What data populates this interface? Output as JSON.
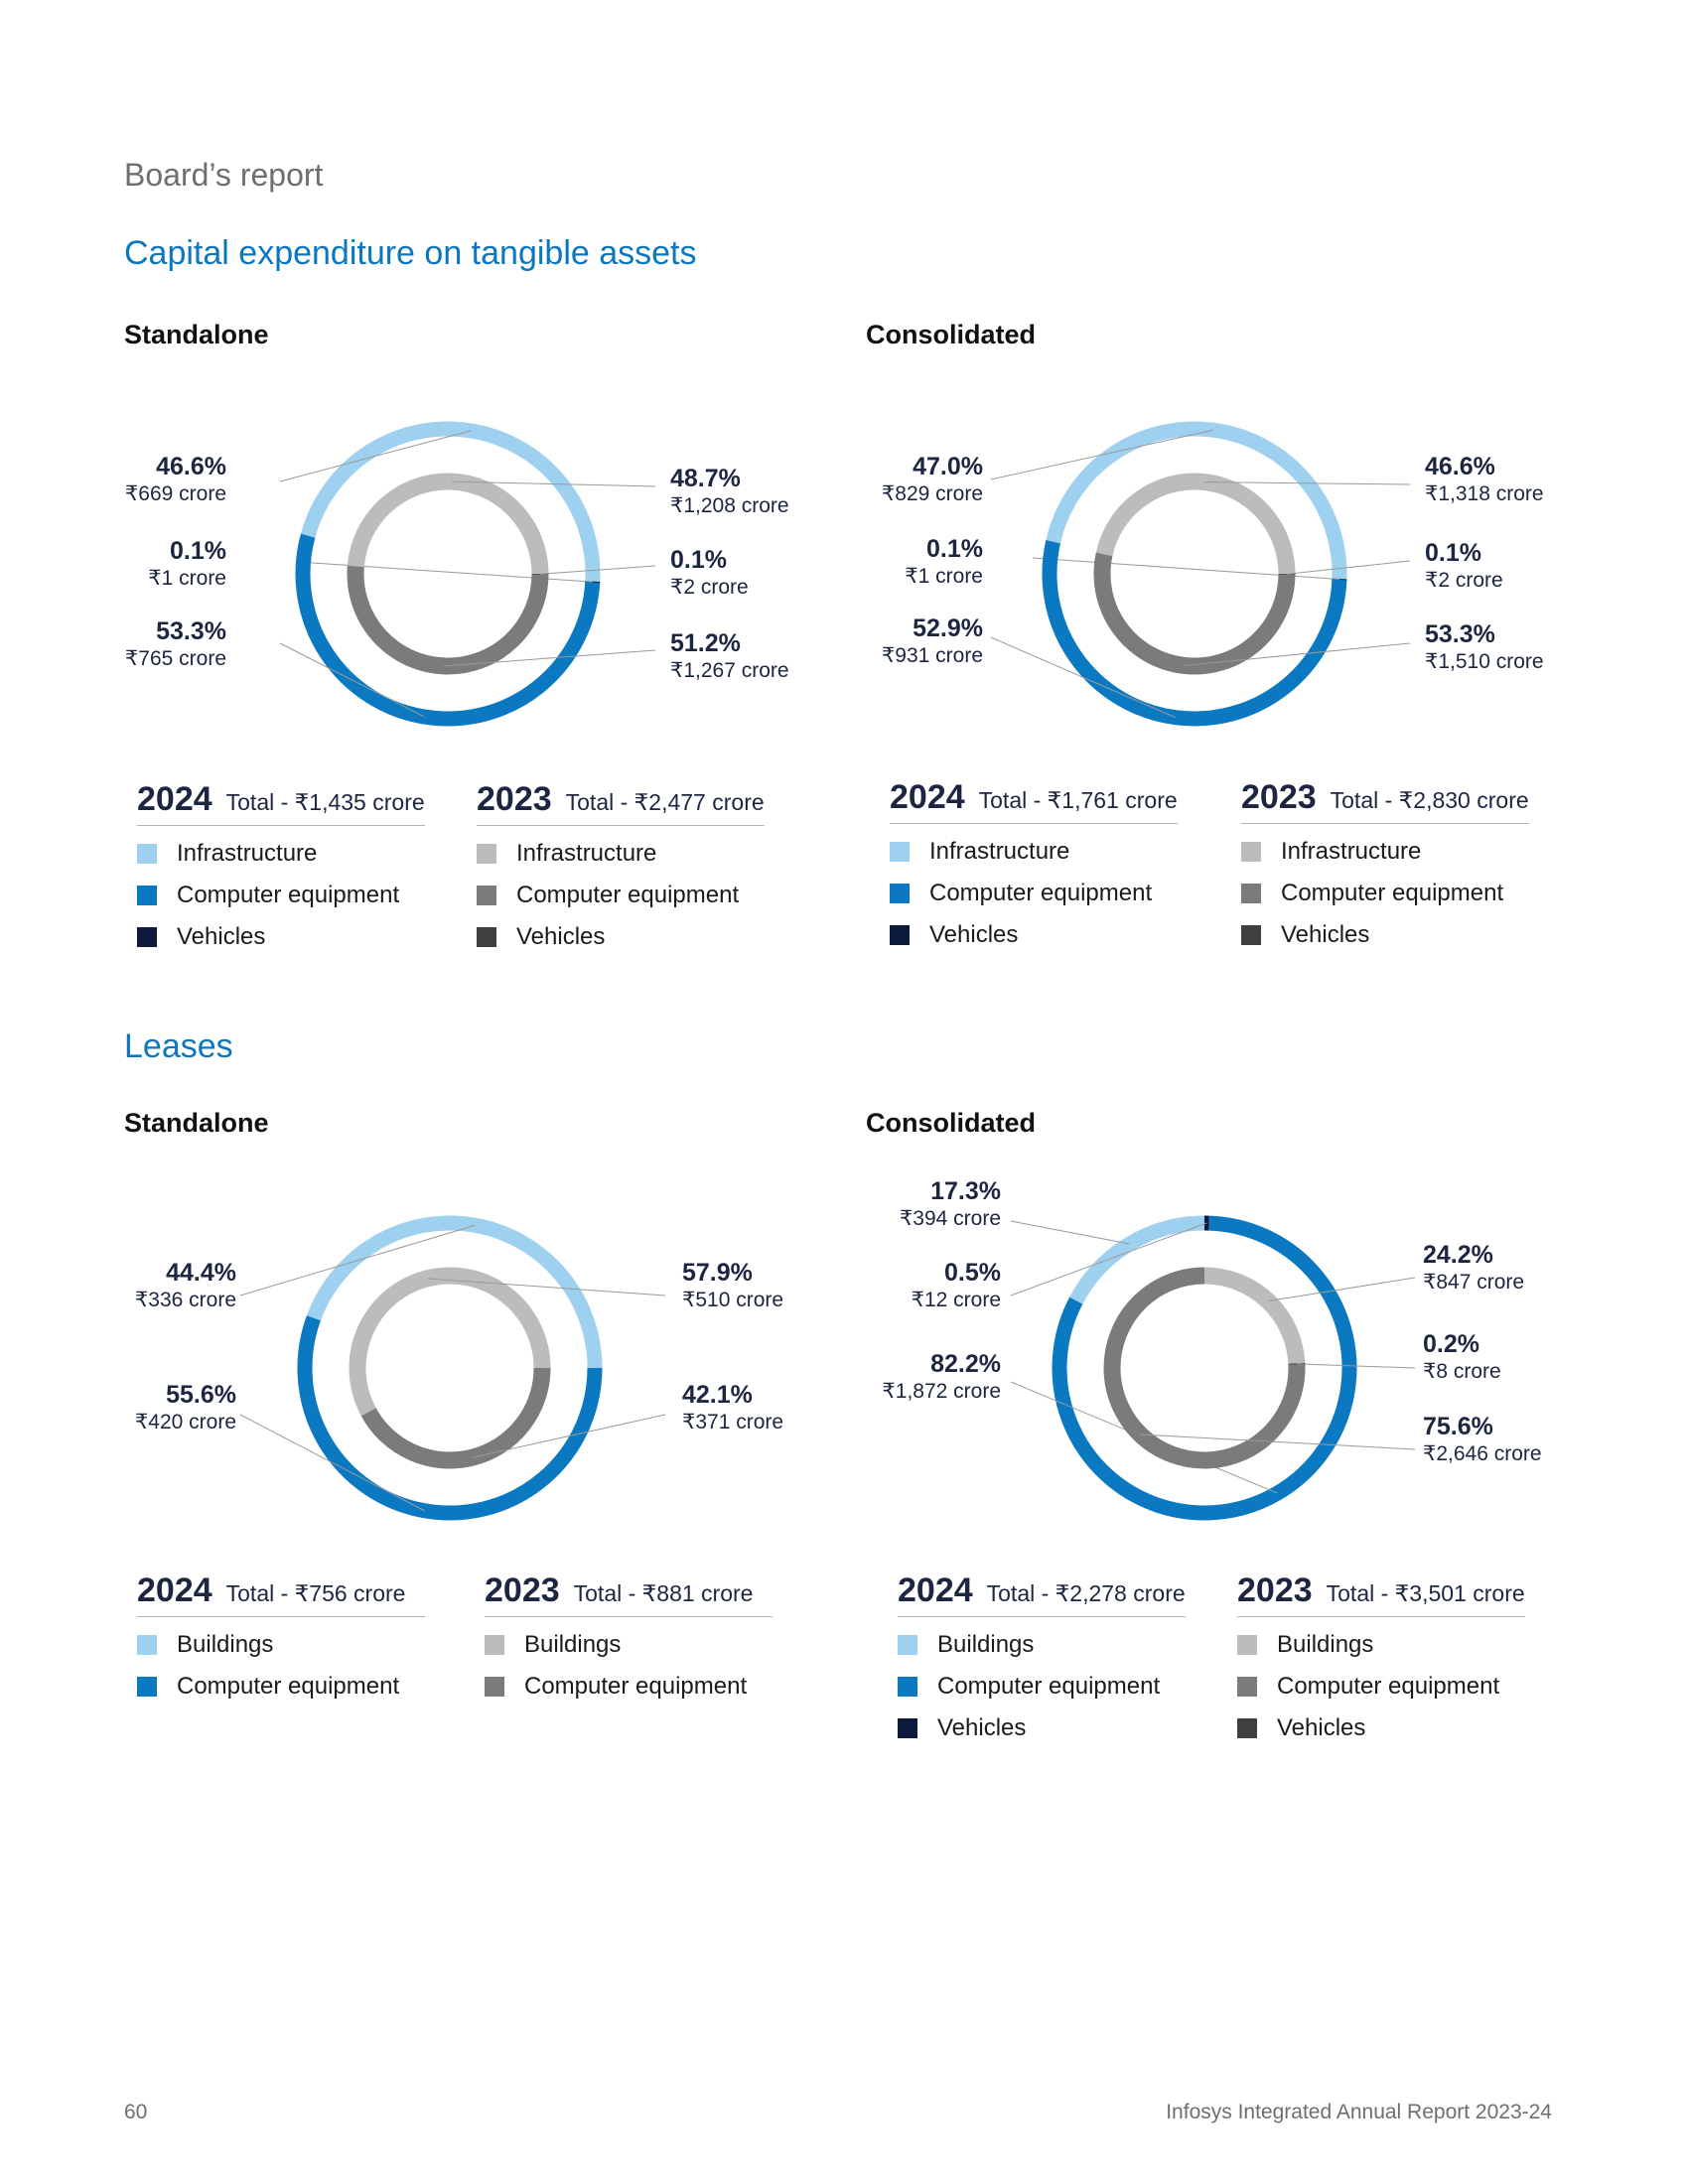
{
  "page": {
    "breadcrumb": "Board’s report",
    "page_number": "60",
    "report_title": "Infosys Integrated Annual Report 2023-24"
  },
  "sections": {
    "capex": {
      "title": "Capital expenditure on tangible assets",
      "standalone": "Standalone",
      "consolidated": "Consolidated"
    },
    "leases": {
      "title": "Leases",
      "standalone": "Standalone",
      "consolidated": "Consolidated"
    }
  },
  "colors": {
    "light_blue": "#9ed0f0",
    "blue": "#0a79c1",
    "navy": "#0e1a3d",
    "light_gray": "#bcbcbc",
    "gray": "#7b7b7b",
    "dark_gray": "#3f3f3f"
  },
  "chart_data": [
    {
      "id": "capex_standalone",
      "type": "pie",
      "outer": {
        "year": "2024",
        "total": "Total - ₹1,435 crore",
        "slices": [
          {
            "name": "Infrastructure",
            "value": 46.6,
            "pct": "46.6%",
            "amount": "₹669 crore",
            "color": "#9ed0f0"
          },
          {
            "name": "Vehicles",
            "value": 0.1,
            "pct": "0.1%",
            "amount": "₹1 crore",
            "color": "#0e1a3d"
          },
          {
            "name": "Computer equipment",
            "value": 53.3,
            "pct": "53.3%",
            "amount": "₹765 crore",
            "color": "#0a79c1"
          }
        ]
      },
      "inner": {
        "year": "2023",
        "total": "Total - ₹2,477 crore",
        "slices": [
          {
            "name": "Infrastructure",
            "value": 48.7,
            "pct": "48.7%",
            "amount": "₹1,208 crore",
            "color": "#bcbcbc"
          },
          {
            "name": "Vehicles",
            "value": 0.1,
            "pct": "0.1%",
            "amount": "₹2 crore",
            "color": "#3f3f3f"
          },
          {
            "name": "Computer equipment",
            "value": 51.2,
            "pct": "51.2%",
            "amount": "₹1,267 crore",
            "color": "#7b7b7b"
          }
        ]
      },
      "legend_2024": [
        "Infrastructure",
        "Computer equipment",
        "Vehicles"
      ],
      "legend_2023": [
        "Infrastructure",
        "Computer equipment",
        "Vehicles"
      ]
    },
    {
      "id": "capex_consolidated",
      "type": "pie",
      "outer": {
        "year": "2024",
        "total": "Total - ₹1,761 crore",
        "slices": [
          {
            "name": "Infrastructure",
            "value": 47.0,
            "pct": "47.0%",
            "amount": "₹829 crore",
            "color": "#9ed0f0"
          },
          {
            "name": "Vehicles",
            "value": 0.1,
            "pct": "0.1%",
            "amount": "₹1 crore",
            "color": "#0e1a3d"
          },
          {
            "name": "Computer equipment",
            "value": 52.9,
            "pct": "52.9%",
            "amount": "₹931 crore",
            "color": "#0a79c1"
          }
        ]
      },
      "inner": {
        "year": "2023",
        "total": "Total - ₹2,830 crore",
        "slices": [
          {
            "name": "Infrastructure",
            "value": 46.6,
            "pct": "46.6%",
            "amount": "₹1,318 crore",
            "color": "#bcbcbc"
          },
          {
            "name": "Vehicles",
            "value": 0.1,
            "pct": "0.1%",
            "amount": "₹2 crore",
            "color": "#3f3f3f"
          },
          {
            "name": "Computer equipment",
            "value": 53.3,
            "pct": "53.3%",
            "amount": "₹1,510 crore",
            "color": "#7b7b7b"
          }
        ]
      },
      "legend_2024": [
        "Infrastructure",
        "Computer equipment",
        "Vehicles"
      ],
      "legend_2023": [
        "Infrastructure",
        "Computer equipment",
        "Vehicles"
      ]
    },
    {
      "id": "leases_standalone",
      "type": "pie",
      "outer": {
        "year": "2024",
        "total": "Total - ₹756 crore",
        "slices": [
          {
            "name": "Buildings",
            "value": 44.4,
            "pct": "44.4%",
            "amount": "₹336 crore",
            "color": "#9ed0f0"
          },
          {
            "name": "Computer equipment",
            "value": 55.6,
            "pct": "55.6%",
            "amount": "₹420 crore",
            "color": "#0a79c1"
          }
        ]
      },
      "inner": {
        "year": "2023",
        "total": "Total - ₹881 crore",
        "slices": [
          {
            "name": "Buildings",
            "value": 57.9,
            "pct": "57.9%",
            "amount": "₹510 crore",
            "color": "#bcbcbc"
          },
          {
            "name": "Computer equipment",
            "value": 42.1,
            "pct": "42.1%",
            "amount": "₹371 crore",
            "color": "#7b7b7b"
          }
        ]
      },
      "legend_2024": [
        "Buildings",
        "Computer equipment"
      ],
      "legend_2023": [
        "Buildings",
        "Computer equipment"
      ]
    },
    {
      "id": "leases_consolidated",
      "type": "pie",
      "outer": {
        "year": "2024",
        "total": "Total - ₹2,278 crore",
        "slices": [
          {
            "name": "Buildings",
            "value": 17.3,
            "pct": "17.3%",
            "amount": "₹394 crore",
            "color": "#9ed0f0"
          },
          {
            "name": "Vehicles",
            "value": 0.5,
            "pct": "0.5%",
            "amount": "₹12 crore",
            "color": "#0e1a3d"
          },
          {
            "name": "Computer equipment",
            "value": 82.2,
            "pct": "82.2%",
            "amount": "₹1,872 crore",
            "color": "#0a79c1"
          }
        ]
      },
      "inner": {
        "year": "2023",
        "total": "Total - ₹3,501 crore",
        "slices": [
          {
            "name": "Buildings",
            "value": 24.2,
            "pct": "24.2%",
            "amount": "₹847 crore",
            "color": "#bcbcbc"
          },
          {
            "name": "Vehicles",
            "value": 0.2,
            "pct": "0.2%",
            "amount": "₹8 crore",
            "color": "#3f3f3f"
          },
          {
            "name": "Computer equipment",
            "value": 75.6,
            "pct": "75.6%",
            "amount": "₹2,646 crore",
            "color": "#7b7b7b"
          }
        ]
      },
      "legend_2024": [
        "Buildings",
        "Computer equipment",
        "Vehicles"
      ],
      "legend_2023": [
        "Buildings",
        "Computer equipment",
        "Vehicles"
      ]
    }
  ]
}
